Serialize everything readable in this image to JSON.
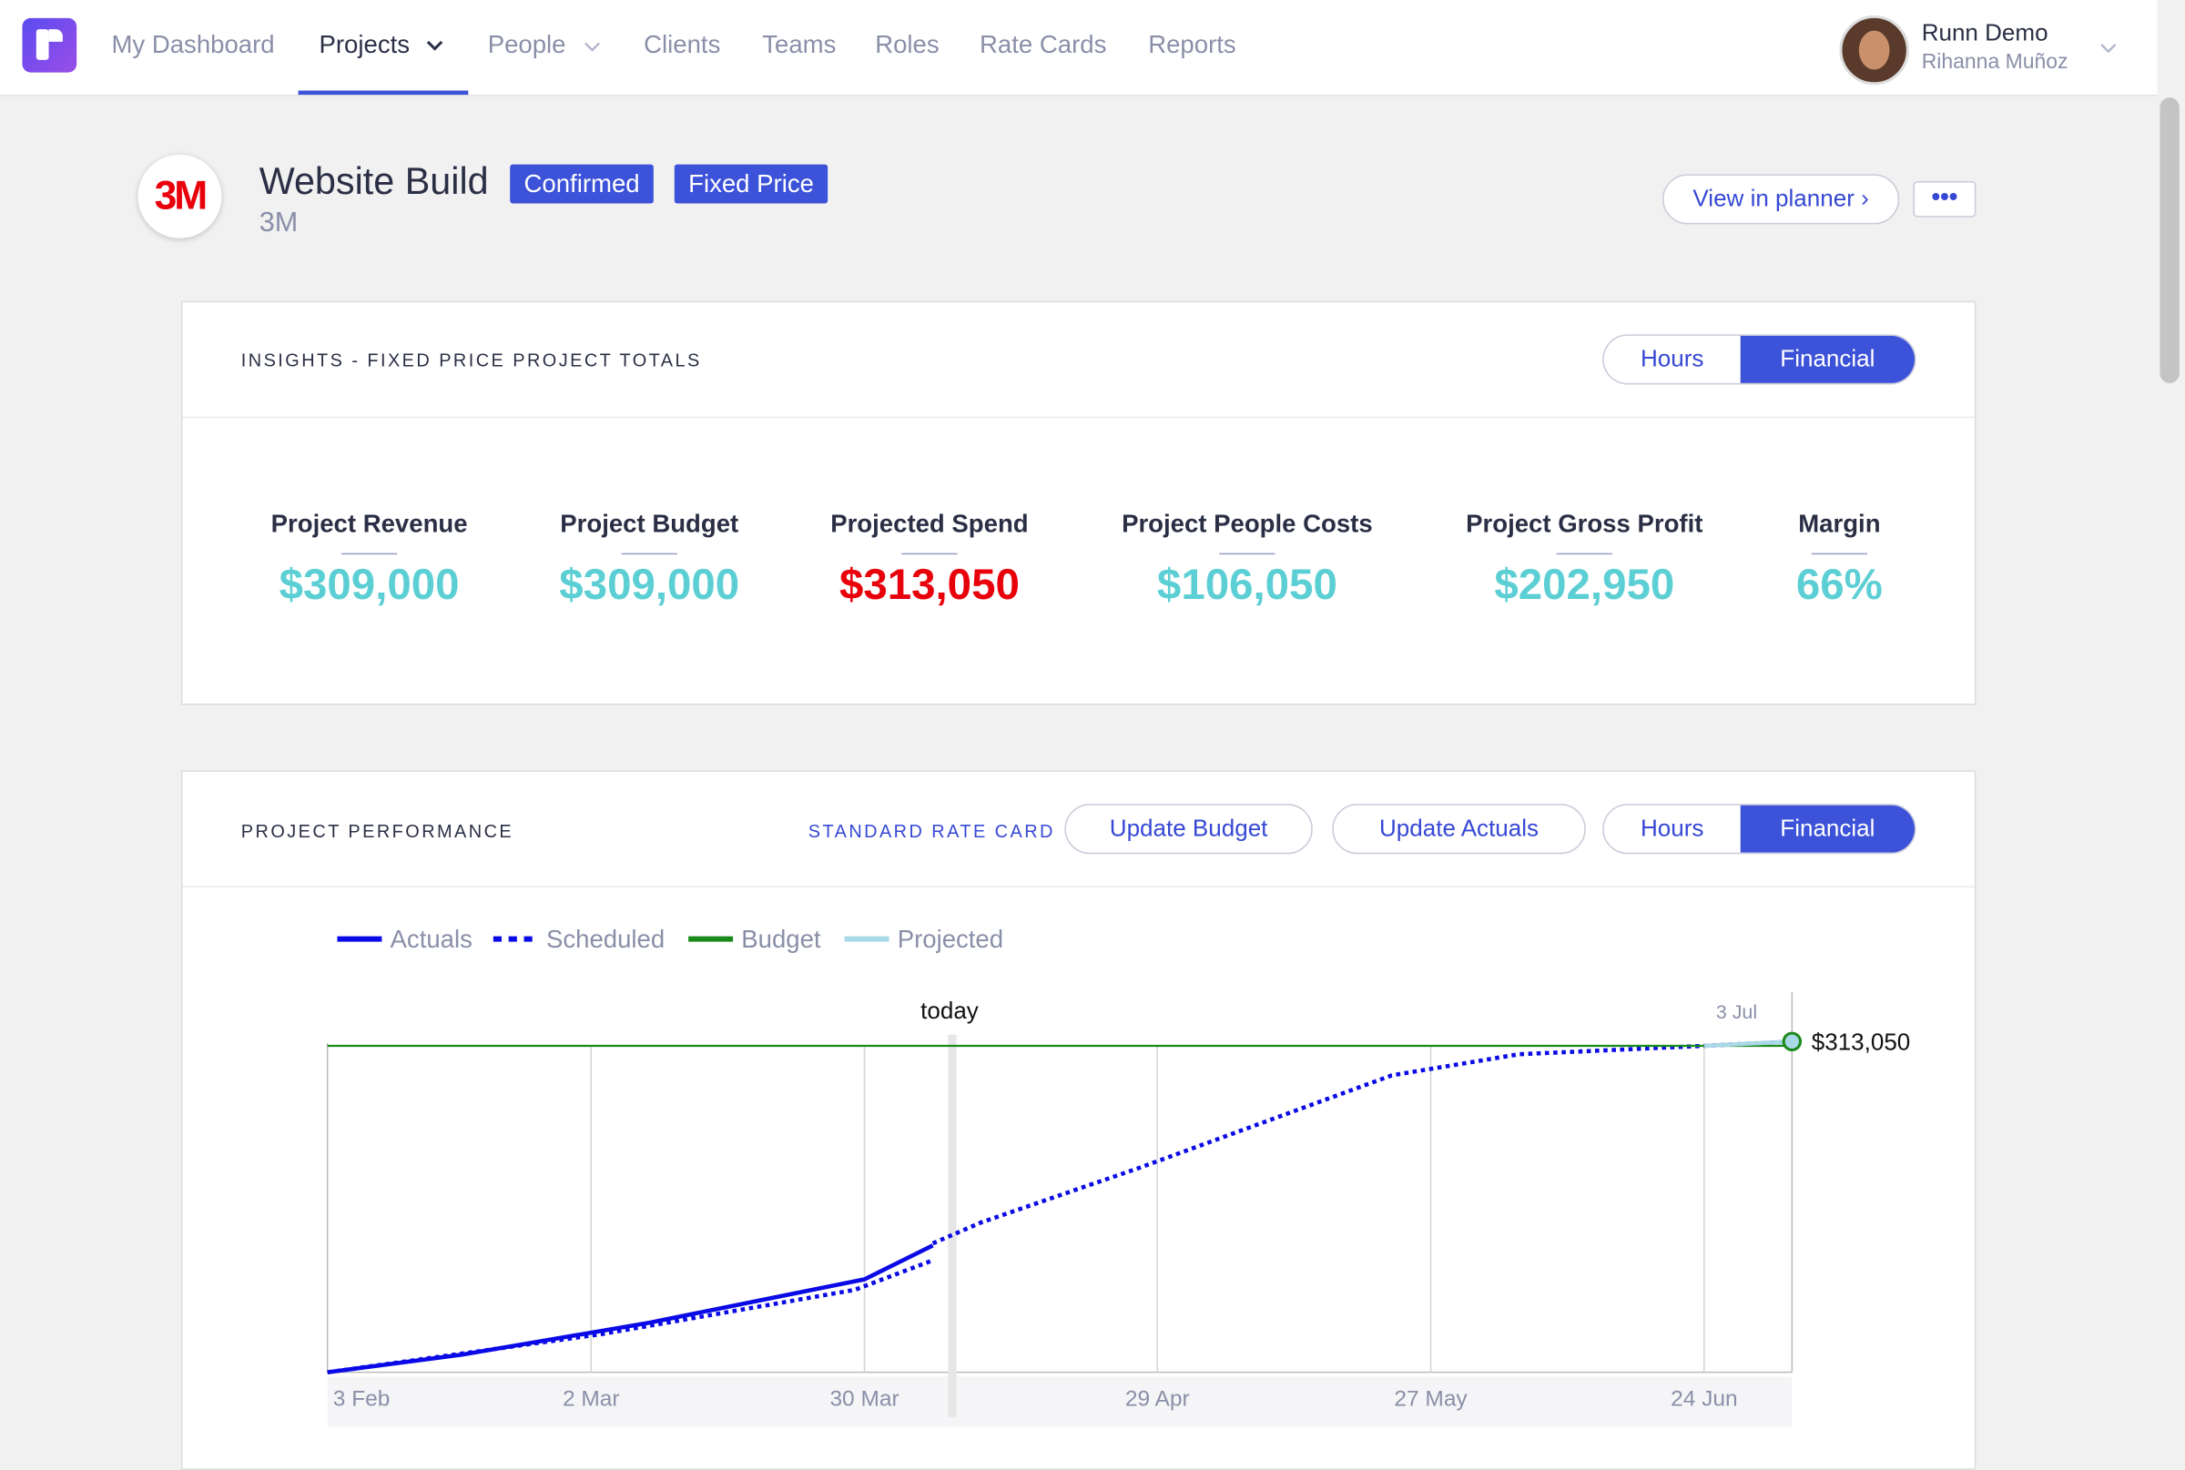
{
  "nav": {
    "items": [
      "My Dashboard",
      "Projects",
      "People",
      "Clients",
      "Teams",
      "Roles",
      "Rate Cards",
      "Reports"
    ],
    "user_name": "Runn Demo",
    "user_role": "Rihanna Muñoz"
  },
  "project": {
    "title": "Website Build",
    "client": "3M",
    "badges": [
      "Confirmed",
      "Fixed Price"
    ],
    "view_button": "View in planner"
  },
  "insights": {
    "title": "INSIGHTS - FIXED PRICE PROJECT TOTALS",
    "toggle": [
      "Hours",
      "Financial"
    ],
    "metrics": [
      {
        "label": "Project Revenue",
        "value": "$309,000"
      },
      {
        "label": "Project Budget",
        "value": "$309,000"
      },
      {
        "label": "Projected Spend",
        "value": "$313,050"
      },
      {
        "label": "Project People Costs",
        "value": "$106,050"
      },
      {
        "label": "Project Gross Profit",
        "value": "$202,950"
      },
      {
        "label": "Margin",
        "value": "66%"
      }
    ]
  },
  "performance": {
    "title": "PROJECT PERFORMANCE",
    "rate_card": "STANDARD RATE CARD",
    "buttons": [
      "Update Budget",
      "Update Actuals"
    ],
    "toggle": [
      "Hours",
      "Financial"
    ]
  },
  "chart_data": {
    "type": "line",
    "xlim": [
      0,
      150
    ],
    "ylim": [
      0,
      360000
    ],
    "xticks": [
      {
        "value": 0,
        "label": "3 Feb"
      },
      {
        "value": 27,
        "label": "2 Mar"
      },
      {
        "value": 55,
        "label": "30 Mar"
      },
      {
        "value": 85,
        "label": "29 Apr"
      },
      {
        "value": 113,
        "label": "27 May"
      },
      {
        "value": 141,
        "label": "24 Jun"
      }
    ],
    "annotations": [
      {
        "x": 64,
        "label": "today"
      },
      {
        "x": 150,
        "label": "3 Jul"
      }
    ],
    "series": [
      {
        "name": "Actuals",
        "color": "#0a0ae6",
        "line_style": "solid",
        "x": [
          0,
          14,
          33,
          55,
          62
        ],
        "values": [
          0,
          17000,
          47000,
          88000,
          120000
        ]
      },
      {
        "name": "Scheduled",
        "color": "#0a0ae6",
        "line_style": "dotted",
        "x": [
          0,
          28,
          54,
          62,
          62,
          62,
          67,
          83,
          109,
          122,
          141,
          150
        ],
        "values": [
          0,
          36000,
          78000,
          106000,
          null,
          122000,
          142000,
          193000,
          281000,
          301000,
          309000,
          313050
        ]
      },
      {
        "name": "Budget",
        "color": "#1a8a1a",
        "line_style": "solid",
        "x": [
          0,
          150
        ],
        "values": [
          309000,
          309000
        ]
      },
      {
        "name": "Projected",
        "color": "#a9d8e6",
        "line_style": "solid",
        "x": [
          141,
          150
        ],
        "values": [
          309000,
          313050
        ],
        "value_labels": [
          null,
          "$313,050"
        ]
      }
    ]
  }
}
